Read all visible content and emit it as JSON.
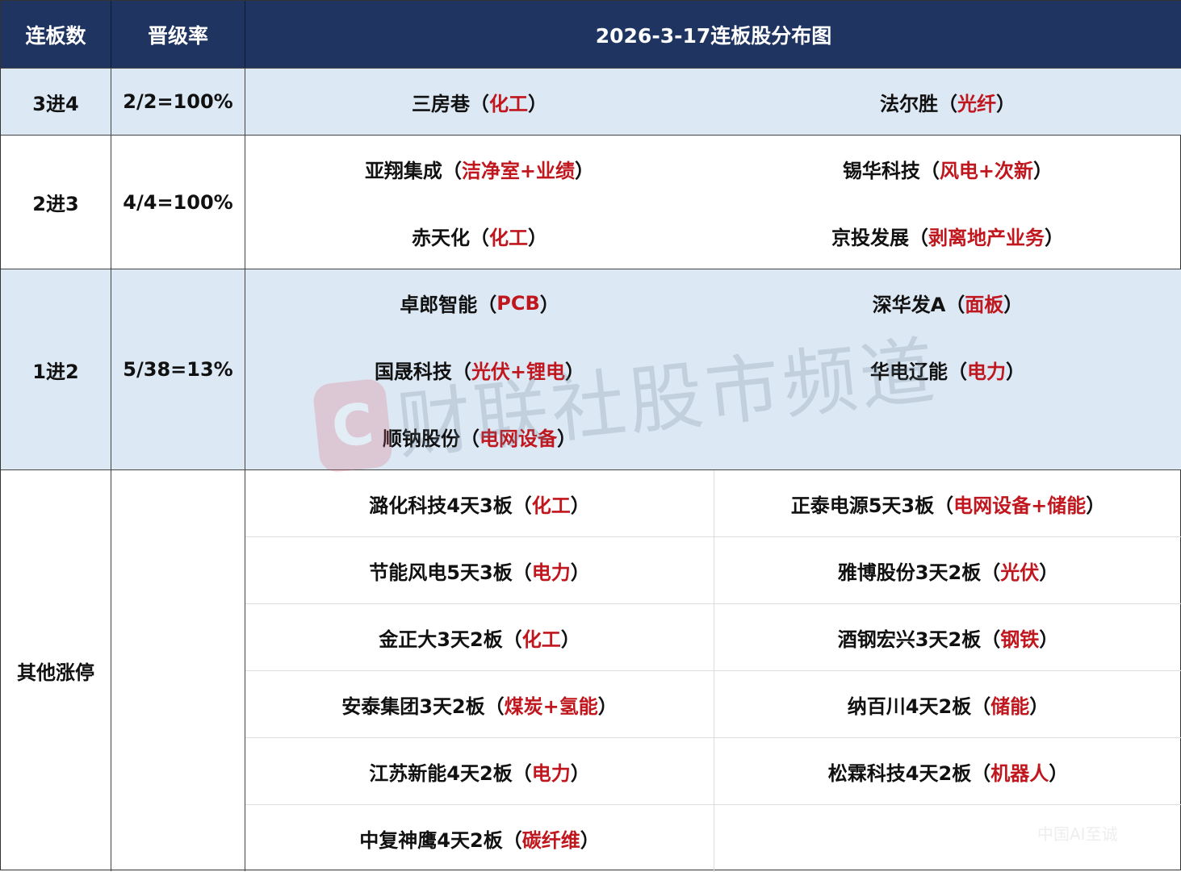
{
  "header": {
    "col1": "连板数",
    "col2": "晋级率",
    "title": "2026-3-17连板股分布图"
  },
  "colors": {
    "header_bg": "#1f3461",
    "shade_bg": "#dce8f4",
    "tag": "#c0161d"
  },
  "sections": [
    {
      "label": "3进4",
      "rate": "2/2=100%",
      "shaded": true,
      "lined": false,
      "rows": [
        [
          {
            "name": "三房巷",
            "tag": "化工"
          },
          {
            "name": "法尔胜",
            "tag": "光纤"
          }
        ]
      ]
    },
    {
      "label": "2进3",
      "rate": "4/4=100%",
      "shaded": false,
      "lined": false,
      "rows": [
        [
          {
            "name": "亚翔集成",
            "tag": "洁净室+业绩"
          },
          {
            "name": "锡华科技",
            "tag": "风电+次新"
          }
        ],
        [
          {
            "name": "赤天化",
            "tag": "化工"
          },
          {
            "name": "京投发展",
            "tag": "剥离地产业务"
          }
        ]
      ]
    },
    {
      "label": "1进2",
      "rate": "5/38=13%",
      "shaded": true,
      "lined": false,
      "rows": [
        [
          {
            "name": "卓郎智能",
            "tag": "PCB"
          },
          {
            "name": "深华发A",
            "tag": "面板"
          }
        ],
        [
          {
            "name": "国晟科技",
            "tag": "光伏+锂电"
          },
          {
            "name": "华电辽能",
            "tag": "电力"
          }
        ],
        [
          {
            "name": "顺钠股份",
            "tag": "电网设备"
          },
          null
        ]
      ]
    },
    {
      "label": "其他涨停",
      "rate": "",
      "shaded": false,
      "lined": true,
      "rows": [
        [
          {
            "name": "潞化科技4天3板",
            "tag": "化工"
          },
          {
            "name": "正泰电源5天3板",
            "tag": "电网设备+储能"
          }
        ],
        [
          {
            "name": "节能风电5天3板",
            "tag": "电力"
          },
          {
            "name": "雅博股份3天2板",
            "tag": "光伏"
          }
        ],
        [
          {
            "name": "金正大3天2板",
            "tag": "化工"
          },
          {
            "name": "酒钢宏兴3天2板",
            "tag": "钢铁"
          }
        ],
        [
          {
            "name": "安泰集团3天2板",
            "tag": "煤炭+氢能"
          },
          {
            "name": "纳百川4天2板",
            "tag": "储能"
          }
        ],
        [
          {
            "name": "江苏新能4天2板",
            "tag": "电力"
          },
          {
            "name": "松霖科技4天2板",
            "tag": "机器人"
          }
        ],
        [
          {
            "name": "中复神鹰4天2板",
            "tag": "碳纤维"
          },
          null
        ]
      ]
    }
  ],
  "watermark": {
    "text": "财联社股市频道",
    "logo": "C",
    "corner": "中国AI至诚"
  },
  "paren_open": "（",
  "paren_close": "）"
}
